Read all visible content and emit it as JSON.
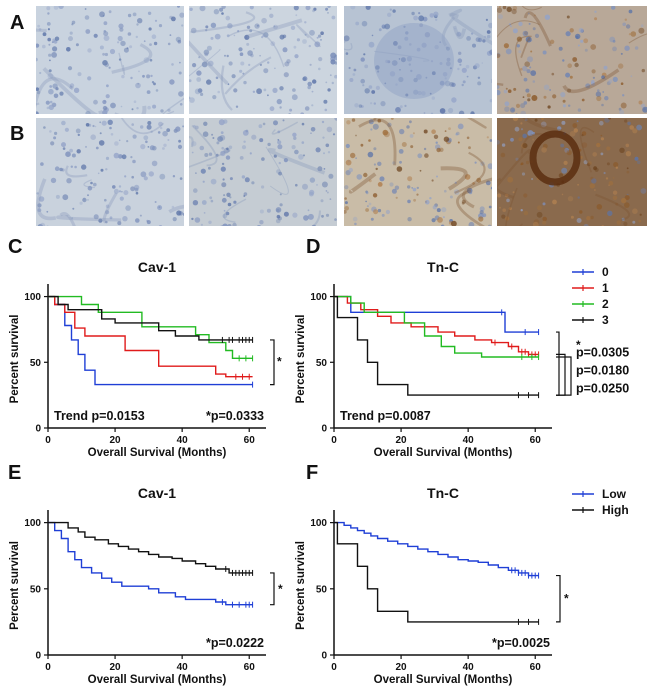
{
  "figure": {
    "panel_labels": [
      "A",
      "B",
      "C",
      "D",
      "E",
      "F"
    ],
    "micrograph_rows": [
      {
        "label": "A",
        "tiles": [
          {
            "name": "a1",
            "stain": "weak",
            "tone": "#c9d3df"
          },
          {
            "name": "a2",
            "stain": "weak",
            "tone": "#ccd5df"
          },
          {
            "name": "a3",
            "stain": "weak-nested",
            "tone": "#b7c3d3"
          },
          {
            "name": "a4",
            "stain": "moderate-brown",
            "tone": "#b8a898"
          }
        ]
      },
      {
        "label": "B",
        "tiles": [
          {
            "name": "b1",
            "stain": "weak",
            "tone": "#c9d2dd"
          },
          {
            "name": "b2",
            "stain": "weak-mixed",
            "tone": "#c5ccd3"
          },
          {
            "name": "b3",
            "stain": "moderate-brown",
            "tone": "#c9bca7"
          },
          {
            "name": "b4",
            "stain": "strong-brown",
            "tone": "#8a6a4d"
          }
        ]
      }
    ],
    "legend_top": {
      "entries": [
        "0",
        "1",
        "2",
        "3"
      ],
      "colors": [
        "#1f3fd6",
        "#e01b1b",
        "#22bb22",
        "#111111"
      ]
    },
    "legend_bottom": {
      "entries": [
        "Low",
        "High"
      ],
      "colors": [
        "#1f3fd6",
        "#111111"
      ]
    }
  },
  "chart_data": [
    {
      "panel": "C",
      "type": "line",
      "step": true,
      "title": "Cav-1",
      "xlabel": "Overall Survival (Months)",
      "ylabel": "Percent survival",
      "xlim": [
        0,
        65
      ],
      "ylim": [
        0,
        105
      ],
      "xticks": [
        0,
        20,
        40,
        60
      ],
      "yticks": [
        0,
        50,
        100
      ],
      "annotations": [
        "Trend p=0.0153",
        "*p=0.0333",
        "*"
      ],
      "series": [
        {
          "name": "0",
          "color": "#1f3fd6",
          "points": [
            [
              0,
              100
            ],
            [
              2,
              94
            ],
            [
              5,
              78
            ],
            [
              7,
              67
            ],
            [
              9,
              56
            ],
            [
              11,
              44
            ],
            [
              14,
              33
            ],
            [
              61,
              33
            ]
          ],
          "censor": [
            61
          ]
        },
        {
          "name": "1",
          "color": "#e01b1b",
          "points": [
            [
              0,
              100
            ],
            [
              2,
              94
            ],
            [
              5,
              88
            ],
            [
              8,
              76
            ],
            [
              11,
              70
            ],
            [
              20,
              70
            ],
            [
              23,
              59
            ],
            [
              30,
              59
            ],
            [
              33,
              47
            ],
            [
              48,
              47
            ],
            [
              50,
              41
            ],
            [
              53,
              39
            ],
            [
              61,
              39
            ]
          ],
          "censor": [
            56,
            58,
            60
          ]
        },
        {
          "name": "2",
          "color": "#22bb22",
          "points": [
            [
              0,
              100
            ],
            [
              10,
              94
            ],
            [
              15,
              88
            ],
            [
              26,
              88
            ],
            [
              28,
              77
            ],
            [
              41,
              77
            ],
            [
              44,
              71
            ],
            [
              48,
              65
            ],
            [
              53,
              59
            ],
            [
              55,
              53
            ],
            [
              61,
              53
            ]
          ],
          "censor": [
            57,
            59,
            61
          ]
        },
        {
          "name": "3",
          "color": "#111111",
          "points": [
            [
              0,
              100
            ],
            [
              3,
              94
            ],
            [
              6,
              90
            ],
            [
              14,
              90
            ],
            [
              16,
              83
            ],
            [
              20,
              80
            ],
            [
              30,
              80
            ],
            [
              33,
              74
            ],
            [
              38,
              70
            ],
            [
              45,
              67
            ],
            [
              61,
              67
            ]
          ],
          "censor": [
            52,
            54,
            55,
            57,
            58,
            59,
            60,
            61
          ]
        }
      ]
    },
    {
      "panel": "D",
      "type": "line",
      "step": true,
      "title": "Tn-C",
      "xlabel": "Overall Survival (Months)",
      "ylabel": "Percent survival",
      "xlim": [
        0,
        65
      ],
      "ylim": [
        0,
        105
      ],
      "xticks": [
        0,
        20,
        40,
        60
      ],
      "yticks": [
        0,
        50,
        100
      ],
      "annotations": [
        "Trend p=0.0087",
        "*",
        "p=0.0305",
        "p=0.0180",
        "p=0.0250"
      ],
      "series": [
        {
          "name": "0",
          "color": "#1f3fd6",
          "points": [
            [
              0,
              100
            ],
            [
              5,
              88
            ],
            [
              50,
              88
            ],
            [
              51,
              73
            ],
            [
              61,
              73
            ]
          ],
          "censor": [
            50,
            57,
            61
          ]
        },
        {
          "name": "1",
          "color": "#e01b1b",
          "points": [
            [
              0,
              100
            ],
            [
              4,
              95
            ],
            [
              8,
              90
            ],
            [
              13,
              85
            ],
            [
              17,
              80
            ],
            [
              23,
              77
            ],
            [
              31,
              73
            ],
            [
              36,
              70
            ],
            [
              42,
              67
            ],
            [
              47,
              65
            ],
            [
              52,
              62
            ],
            [
              55,
              58
            ],
            [
              58,
              56
            ],
            [
              61,
              56
            ]
          ],
          "censor": [
            48,
            53,
            56,
            57,
            58,
            59,
            60,
            61
          ]
        },
        {
          "name": "2",
          "color": "#22bb22",
          "points": [
            [
              0,
              100
            ],
            [
              5,
              95
            ],
            [
              9,
              88
            ],
            [
              18,
              88
            ],
            [
              21,
              80
            ],
            [
              27,
              70
            ],
            [
              32,
              62
            ],
            [
              36,
              57
            ],
            [
              44,
              54
            ],
            [
              61,
              54
            ]
          ],
          "censor": [
            56,
            59,
            61
          ]
        },
        {
          "name": "3",
          "color": "#111111",
          "points": [
            [
              0,
              100
            ],
            [
              1,
              84
            ],
            [
              5,
              84
            ],
            [
              7,
              67
            ],
            [
              10,
              50
            ],
            [
              13,
              33
            ],
            [
              17,
              33
            ],
            [
              22,
              25
            ],
            [
              61,
              25
            ]
          ],
          "censor": [
            55,
            58,
            61
          ]
        }
      ]
    },
    {
      "panel": "E",
      "type": "line",
      "step": true,
      "title": "Cav-1",
      "xlabel": "Overall Survival (Months)",
      "ylabel": "Percent survival",
      "xlim": [
        0,
        65
      ],
      "ylim": [
        0,
        105
      ],
      "xticks": [
        0,
        20,
        40,
        60
      ],
      "yticks": [
        0,
        50,
        100
      ],
      "annotations": [
        "*p=0.0222",
        "*"
      ],
      "series": [
        {
          "name": "Low",
          "color": "#1f3fd6",
          "points": [
            [
              0,
              100
            ],
            [
              2,
              94
            ],
            [
              4,
              88
            ],
            [
              6,
              78
            ],
            [
              8,
              72
            ],
            [
              10,
              66
            ],
            [
              13,
              62
            ],
            [
              16,
              58
            ],
            [
              19,
              55
            ],
            [
              22,
              52
            ],
            [
              30,
              50
            ],
            [
              33,
              47
            ],
            [
              38,
              44
            ],
            [
              41,
              42
            ],
            [
              48,
              42
            ],
            [
              50,
              40
            ],
            [
              53,
              38
            ],
            [
              61,
              38
            ]
          ],
          "censor": [
            52,
            55,
            57,
            59,
            60,
            61
          ]
        },
        {
          "name": "High",
          "color": "#111111",
          "points": [
            [
              0,
              100
            ],
            [
              6,
              96
            ],
            [
              9,
              93
            ],
            [
              11,
              89
            ],
            [
              14,
              87
            ],
            [
              18,
              84
            ],
            [
              21,
              82
            ],
            [
              24,
              80
            ],
            [
              27,
              78
            ],
            [
              30,
              76
            ],
            [
              33,
              74
            ],
            [
              37,
              73
            ],
            [
              40,
              71
            ],
            [
              44,
              69
            ],
            [
              47,
              67
            ],
            [
              50,
              65
            ],
            [
              54,
              62
            ],
            [
              61,
              62
            ]
          ],
          "censor": [
            53,
            55,
            56,
            57,
            58,
            59,
            60,
            61
          ]
        }
      ]
    },
    {
      "panel": "F",
      "type": "line",
      "step": true,
      "title": "Tn-C",
      "xlabel": "Overall Survival (Months)",
      "ylabel": "Percent survival",
      "xlim": [
        0,
        65
      ],
      "ylim": [
        0,
        105
      ],
      "xticks": [
        0,
        20,
        40,
        60
      ],
      "yticks": [
        0,
        50,
        100
      ],
      "annotations": [
        "*p=0.0025",
        "*"
      ],
      "series": [
        {
          "name": "Low",
          "color": "#1f3fd6",
          "points": [
            [
              0,
              100
            ],
            [
              3,
              98
            ],
            [
              5,
              96
            ],
            [
              7,
              94
            ],
            [
              9,
              92
            ],
            [
              11,
              90
            ],
            [
              13,
              88
            ],
            [
              16,
              86
            ],
            [
              19,
              84
            ],
            [
              22,
              82
            ],
            [
              25,
              80
            ],
            [
              28,
              78
            ],
            [
              31,
              76
            ],
            [
              34,
              74
            ],
            [
              37,
              72
            ],
            [
              40,
              71
            ],
            [
              43,
              70
            ],
            [
              46,
              68
            ],
            [
              49,
              66
            ],
            [
              52,
              64
            ],
            [
              55,
              62
            ],
            [
              58,
              60
            ],
            [
              61,
              60
            ]
          ],
          "censor": [
            53,
            54,
            55,
            56,
            57,
            58,
            59,
            60,
            61
          ]
        },
        {
          "name": "High",
          "color": "#111111",
          "points": [
            [
              0,
              100
            ],
            [
              1,
              84
            ],
            [
              5,
              84
            ],
            [
              7,
              67
            ],
            [
              10,
              50
            ],
            [
              13,
              33
            ],
            [
              17,
              33
            ],
            [
              22,
              25
            ],
            [
              61,
              25
            ]
          ],
          "censor": [
            55,
            58,
            61
          ]
        }
      ]
    }
  ]
}
